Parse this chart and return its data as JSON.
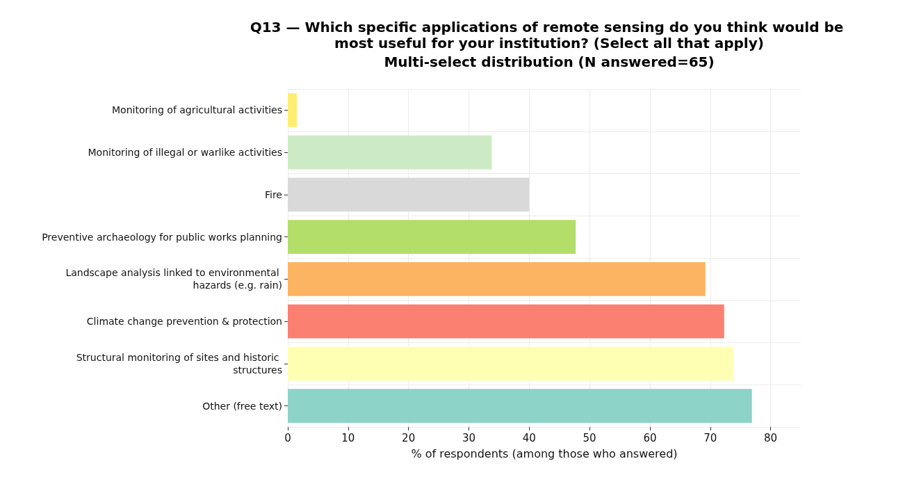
{
  "chart_data": {
    "type": "bar",
    "orientation": "horizontal",
    "title": "Q13 — Which specific applications of remote sensing do you think would be most useful for your institution? (Select all that apply)",
    "subtitle": "Multi-select distribution (N answered=65)",
    "xlabel": "% of respondents (among those who answered)",
    "categories": [
      "Monitoring of agricultural activities",
      "Monitoring of illegal or warlike activities",
      "Fire",
      "Preventive archaeology for public works planning",
      "Landscape analysis linked to environmental hazards (e.g. rain)",
      "Climate change prevention & protection",
      "Structural monitoring of sites and historic structures",
      "Other (free text)"
    ],
    "values": [
      1.5,
      33.8,
      40,
      47.7,
      69.2,
      72.3,
      73.8,
      76.9
    ],
    "colors": [
      "#ffed6f",
      "#ccebc5",
      "#d9d9d9",
      "#b3de69",
      "#fdb462",
      "#fb8072",
      "#ffffb3",
      "#8dd3c7"
    ],
    "xlim": [
      0,
      85
    ],
    "xticks": [
      0,
      10,
      20,
      30,
      40,
      50,
      60,
      70,
      80
    ],
    "grid": true,
    "legend": false
  }
}
